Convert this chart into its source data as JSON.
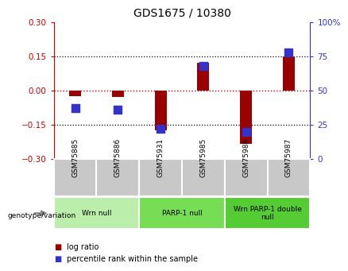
{
  "title": "GDS1675 / 10380",
  "samples": [
    "GSM75885",
    "GSM75886",
    "GSM75931",
    "GSM75985",
    "GSM75986",
    "GSM75987"
  ],
  "log_ratio": [
    -0.025,
    -0.03,
    -0.175,
    0.12,
    -0.235,
    0.148
  ],
  "percentile_rank": [
    37,
    36,
    22,
    68,
    20,
    78
  ],
  "ylim_left": [
    -0.3,
    0.3
  ],
  "ylim_right": [
    0,
    100
  ],
  "yticks_left": [
    -0.3,
    -0.15,
    0,
    0.15,
    0.3
  ],
  "yticks_right": [
    0,
    25,
    50,
    75,
    100
  ],
  "bar_color": "#990000",
  "dot_color": "#3333cc",
  "zero_line_color": "#cc0000",
  "left_axis_color": "#cc0000",
  "right_axis_color": "#3333cc",
  "background_plot": "#ffffff",
  "background_sample_row": "#c8c8c8",
  "genotype_groups": [
    {
      "label": "Wrn null",
      "start": 0,
      "end": 2,
      "color": "#bbeeaa"
    },
    {
      "label": "PARP-1 null",
      "start": 2,
      "end": 4,
      "color": "#77dd55"
    },
    {
      "label": "Wrn PARP-1 double\nnull",
      "start": 4,
      "end": 6,
      "color": "#55cc33"
    }
  ],
  "legend_items": [
    {
      "color": "#990000",
      "label": "log ratio"
    },
    {
      "color": "#3333cc",
      "label": "percentile rank within the sample"
    }
  ],
  "genotype_label": "genotype/variation"
}
